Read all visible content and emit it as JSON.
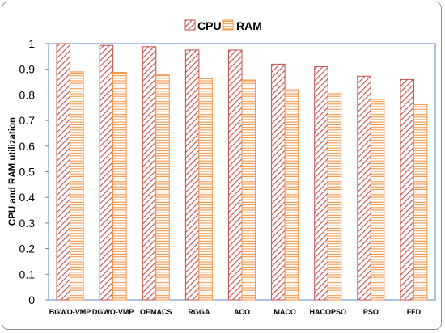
{
  "chart_data": {
    "type": "bar",
    "categories": [
      "BGWO-VMP",
      "DGWO-VMP",
      "OEMACS",
      "RGGA",
      "ACO",
      "MACO",
      "HACOPSO",
      "PSO",
      "FFD"
    ],
    "series": [
      {
        "name": "CPU",
        "values": [
          1.0,
          0.993,
          0.988,
          0.975,
          0.975,
          0.92,
          0.91,
          0.873,
          0.86
        ],
        "color": "#c0504d",
        "pattern": "diagonal-hatch"
      },
      {
        "name": "RAM",
        "values": [
          0.89,
          0.888,
          0.878,
          0.863,
          0.858,
          0.82,
          0.805,
          0.782,
          0.762
        ],
        "color": "#f79646",
        "pattern": "horizontal-lines"
      }
    ],
    "ylabel": "CPU and RAM utilization",
    "xlabel": "",
    "ylim": [
      0,
      1
    ],
    "yticks": [
      "0",
      "0.1",
      "0.2",
      "0.3",
      "0.4",
      "0.5",
      "0.6",
      "0.7",
      "0.8",
      "0.9",
      "1"
    ],
    "legend_position": "top-center",
    "grid": false
  }
}
